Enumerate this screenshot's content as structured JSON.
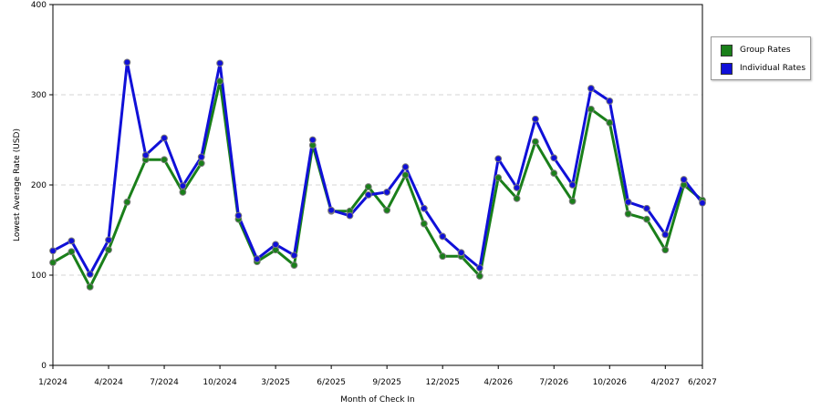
{
  "chart_data": {
    "type": "line",
    "title": "",
    "xlabel": "Month of Check In",
    "ylabel": "Lowest Average Rate (USD)",
    "ylim": [
      0,
      400
    ],
    "yticks": [
      0,
      100,
      200,
      300,
      400
    ],
    "grid": true,
    "legend_position": "right",
    "x_tick_labels": [
      {
        "index": 0,
        "label": "1/2024"
      },
      {
        "index": 3,
        "label": "4/2024"
      },
      {
        "index": 6,
        "label": "7/2024"
      },
      {
        "index": 9,
        "label": "10/2024"
      },
      {
        "index": 12,
        "label": "3/2025"
      },
      {
        "index": 15,
        "label": "6/2025"
      },
      {
        "index": 18,
        "label": "9/2025"
      },
      {
        "index": 21,
        "label": "12/2025"
      },
      {
        "index": 24,
        "label": "4/2026"
      },
      {
        "index": 27,
        "label": "7/2026"
      },
      {
        "index": 30,
        "label": "10/2026"
      },
      {
        "index": 33,
        "label": "4/2027"
      },
      {
        "index": 35,
        "label": "6/2027"
      }
    ],
    "point_count": 36,
    "series": [
      {
        "name": "Group Rates",
        "color": "#1a7f1a",
        "values": [
          114,
          126,
          87,
          128,
          181,
          228,
          228,
          192,
          224,
          315,
          162,
          115,
          128,
          111,
          244,
          171,
          171,
          198,
          172,
          211,
          157,
          121,
          121,
          99,
          208,
          185,
          248,
          213,
          182,
          284,
          269,
          168,
          162,
          128,
          200,
          183
        ]
      },
      {
        "name": "Individual Rates",
        "color": "#1010d8",
        "values": [
          127,
          138,
          101,
          139,
          336,
          233,
          252,
          199,
          231,
          335,
          166,
          118,
          134,
          122,
          250,
          172,
          166,
          189,
          192,
          220,
          174,
          143,
          125,
          108,
          229,
          197,
          273,
          230,
          200,
          307,
          293,
          181,
          174,
          145,
          206,
          180
        ]
      }
    ]
  }
}
